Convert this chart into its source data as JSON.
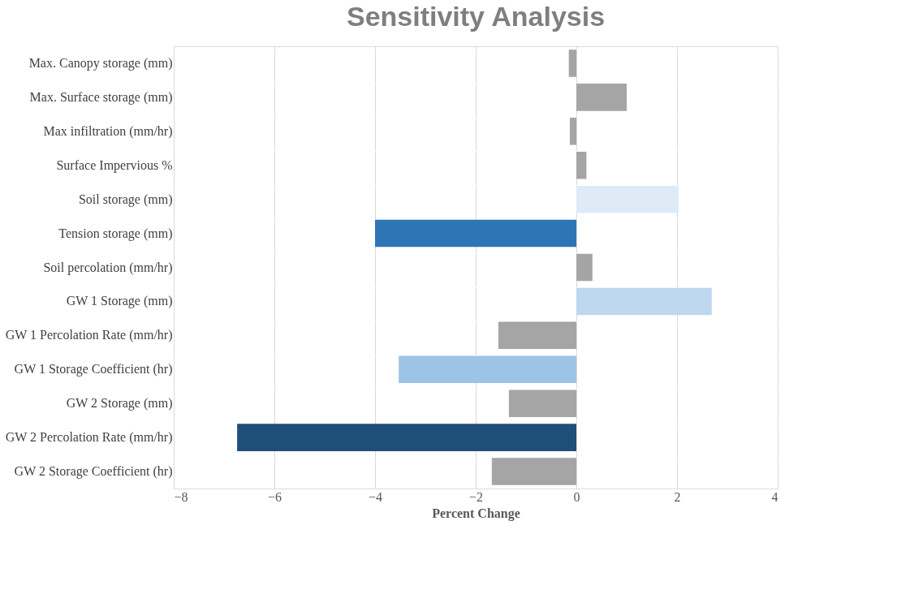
{
  "chart_data": {
    "type": "bar",
    "orientation": "horizontal",
    "title": "Sensitivity Analysis",
    "xlabel": "Percent Change",
    "categories": [
      "Max. Canopy storage (mm)",
      "Max. Surface storage (mm)",
      "Max infiltration (mm/hr)",
      "Surface Impervious %",
      "Soil storage (mm)",
      "Tension storage (mm)",
      "Soil percolation (mm/hr)",
      "GW 1 Storage (mm)",
      "GW 1 Percolation Rate (mm/hr)",
      "GW 1 Storage Coefficient (hr)",
      "GW 2 Storage (mm)",
      "GW 2 Percolation Rate (mm/hr)",
      "GW 2 Storage Coefficient (hr)"
    ],
    "values": [
      -0.15,
      1.0,
      -0.13,
      0.2,
      2.03,
      -4.0,
      0.32,
      2.69,
      -1.55,
      -3.53,
      -1.34,
      -6.74,
      -1.68
    ],
    "colors": [
      "#a5a5a5",
      "#a5a5a5",
      "#a5a5a5",
      "#a5a5a5",
      "#deebf7",
      "#2e75b6",
      "#a5a5a5",
      "#bdd7ee",
      "#a5a5a5",
      "#9dc3e6",
      "#a5a5a5",
      "#1f4e79",
      "#a5a5a5"
    ],
    "xlim": [
      -8,
      4
    ],
    "xticks": [
      -8,
      -6,
      -4,
      -2,
      0,
      2,
      4
    ],
    "grid": "x"
  }
}
